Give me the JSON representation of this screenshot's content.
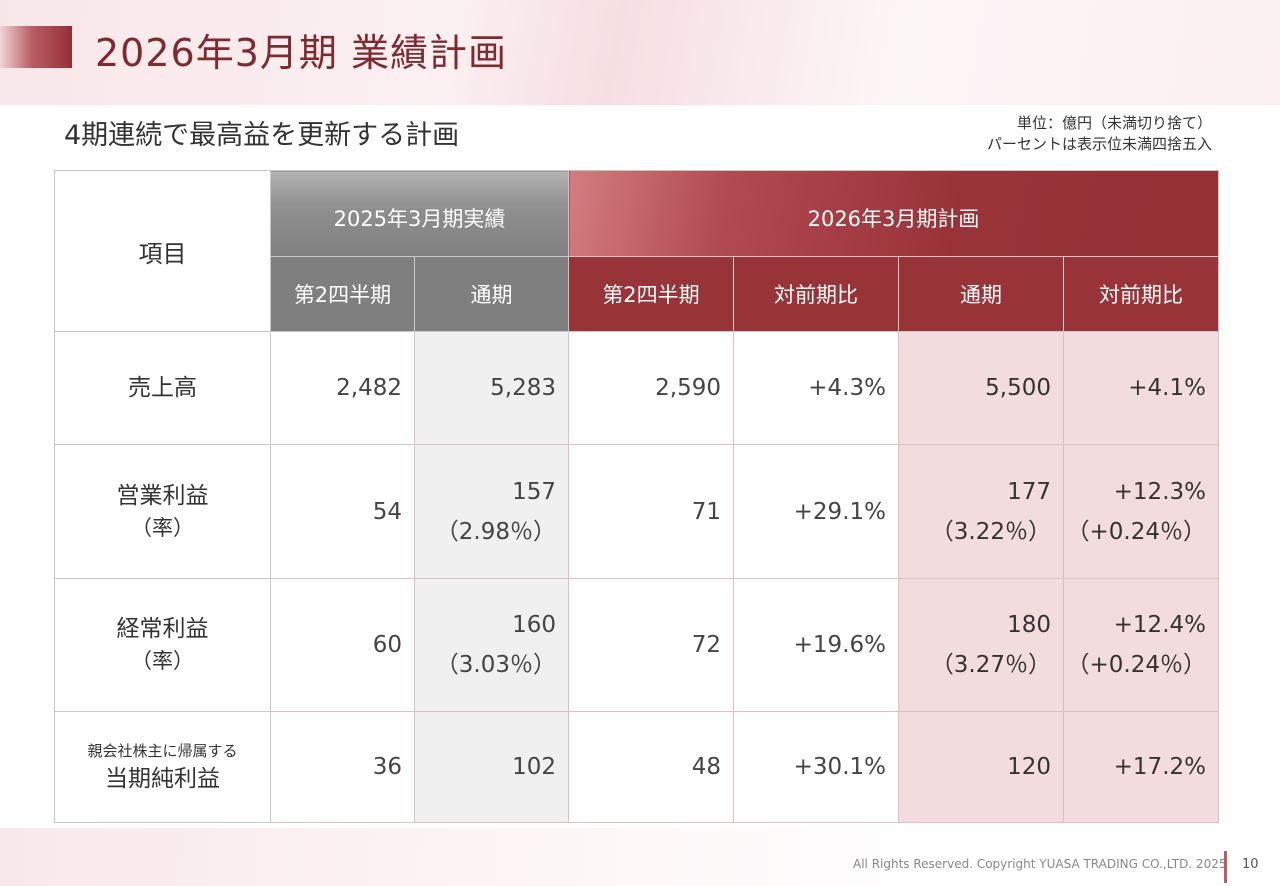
{
  "title": "2026年3月期  業績計画",
  "subtitle": "4期連続で最高益を更新する計画",
  "unit_note": {
    "line1": "単位：億円（未満切り捨て）",
    "line2": "パーセントは表示位未満四捨五入"
  },
  "table": {
    "item_header": "項目",
    "group_2025": "2025年3月期実績",
    "group_2026": "2026年3月期計画",
    "sub_headers": [
      "第2四半期",
      "通期",
      "第2四半期",
      "対前期比",
      "通期",
      "対前期比"
    ],
    "rows": [
      {
        "label": "売上高",
        "q2_2025": "2,482",
        "fy_2025": "5,283",
        "q2_2026": "2,590",
        "q2_yoy": "+4.3%",
        "fy_2026": "5,500",
        "fy_yoy": "+4.1%"
      },
      {
        "label": "営業利益",
        "label_rate": "（率）",
        "q2_2025": "54",
        "fy_2025": "157",
        "fy_2025_rate": "（2.98％）",
        "q2_2026": "71",
        "q2_yoy": "+29.1%",
        "fy_2026": "177",
        "fy_2026_rate": "（3.22％）",
        "fy_yoy": "+12.3%",
        "fy_yoy_rate": "（+0.24％）"
      },
      {
        "label": "経常利益",
        "label_rate": "（率）",
        "q2_2025": "60",
        "fy_2025": "160",
        "fy_2025_rate": "（3.03％）",
        "q2_2026": "72",
        "q2_yoy": "+19.6%",
        "fy_2026": "180",
        "fy_2026_rate": "（3.27％）",
        "fy_yoy": "+12.4%",
        "fy_yoy_rate": "（+0.24％）"
      },
      {
        "label_small": "親会社株主に帰属する",
        "label": "当期純利益",
        "q2_2025": "36",
        "fy_2025": "102",
        "q2_2026": "48",
        "q2_yoy": "+30.1%",
        "fy_2026": "120",
        "fy_yoy": "+17.2%"
      }
    ]
  },
  "footer": {
    "copyright": "All Rights Reserved. Copyright  YUASA TRADING CO.,LTD. 2025",
    "page_number": "10"
  },
  "colors": {
    "accent_red": "#983338",
    "header_gray": "#7f7f7f",
    "highlight_pink": "#f2dcdd",
    "title_color": "#7e2a2f"
  }
}
